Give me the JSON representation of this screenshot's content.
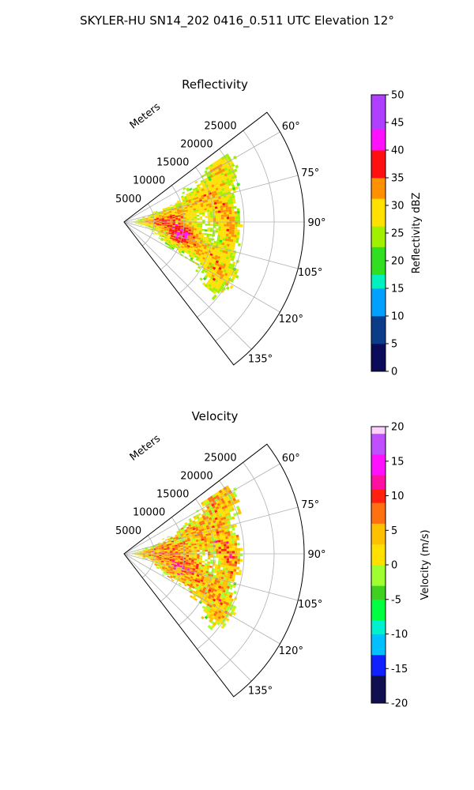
{
  "figure": {
    "suptitle": "SKYLER-HU  SN14_202  0416_0.511 UTC Elevation 12°"
  },
  "chart_data": [
    {
      "type": "heatmap",
      "subtype": "polar-sector (PPI)",
      "title": "Reflectivity",
      "radial_axis_label": "Meters",
      "radial_ticks": [
        5000,
        10000,
        15000,
        20000,
        25000
      ],
      "rlim": [
        0,
        30000
      ],
      "azimuth_ticks": [
        "60°",
        "75°",
        "90°",
        "105°",
        "120°",
        "135°"
      ],
      "azimuth_tick_values": [
        60,
        75,
        90,
        105,
        120,
        135
      ],
      "azimuth_range": [
        52.5,
        142.5
      ],
      "grid": true,
      "colorbar": {
        "label": "Reflectivity dBZ",
        "range": [
          0,
          50
        ],
        "ticks": [
          0,
          5,
          10,
          15,
          20,
          25,
          30,
          35,
          40,
          45,
          50
        ],
        "position": "right"
      }
    },
    {
      "type": "heatmap",
      "subtype": "polar-sector (PPI)",
      "title": "Velocity",
      "radial_axis_label": "Meters",
      "radial_ticks": [
        5000,
        10000,
        15000,
        20000,
        25000
      ],
      "rlim": [
        0,
        30000
      ],
      "azimuth_ticks": [
        "60°",
        "75°",
        "90°",
        "105°",
        "120°",
        "135°"
      ],
      "azimuth_tick_values": [
        60,
        75,
        90,
        105,
        120,
        135
      ],
      "azimuth_range": [
        52.5,
        142.5
      ],
      "grid": true,
      "colorbar": {
        "label": "Velocity (m/s)",
        "range": [
          -20,
          20
        ],
        "ticks": [
          -20,
          -15,
          -10,
          -5,
          0,
          5,
          10,
          15,
          20
        ],
        "position": "right"
      }
    }
  ]
}
